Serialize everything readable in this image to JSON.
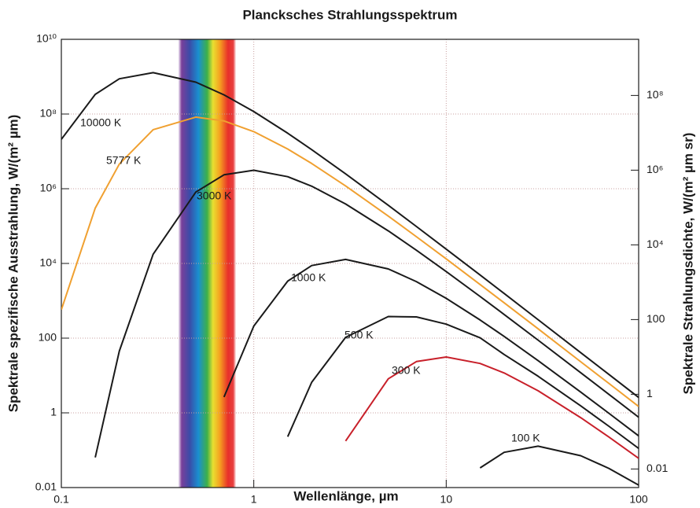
{
  "chart_data": {
    "type": "line",
    "title": "Plancksches Strahlungsspektrum",
    "x_label": "Wellenlänge, µm",
    "y_label": "Spektrale spezifische Ausstrahlung, W/(m² µm)",
    "y2_label": "Spektrale Strahlungsdichte, W/(m² µm sr)",
    "log_x": true,
    "log_y": true,
    "grid": true,
    "visible_range": [
      0.42,
      0.78
    ],
    "x": [
      0.1,
      0.15,
      0.2,
      0.3,
      0.5,
      0.7,
      1,
      1.5,
      2,
      3,
      5,
      7,
      10,
      15,
      20,
      30,
      50,
      70,
      100
    ],
    "xlim": [
      0.1,
      100
    ],
    "xticks": [
      0.1,
      1,
      10,
      100
    ],
    "ylim": [
      0.01,
      10000000000
    ],
    "yticks": [
      0.01,
      1,
      100,
      {
        "value": 10000,
        "label": "10⁴"
      },
      {
        "value": 1000000,
        "label": "10⁶"
      },
      {
        "value": 100000000,
        "label": "10⁸"
      },
      {
        "value": 10000000000,
        "label": "10¹⁰"
      }
    ],
    "y2lim": [
      0.0031831,
      3183098862
    ],
    "y2ticks": [
      0.01,
      1,
      100,
      {
        "value": 10000,
        "label": "10⁴"
      },
      {
        "value": 1000000,
        "label": "10⁶"
      },
      {
        "value": 100000000,
        "label": "10⁸"
      }
    ],
    "series": [
      {
        "name": "10000 K",
        "color": "#1a1a1a",
        "values": [
          21100000,
          336000000,
          878000000,
          1280000000,
          713000000,
          327000000,
          116000000,
          30600000,
          11100000,
          2500000,
          359000,
          97500,
          24200,
          4893,
          1568,
          313,
          41.0,
          10.7,
          2.58
        ]
      },
      {
        "name": "5777 K",
        "color": "#f0a030",
        "values": [
          576,
          304000,
          4570000,
          38200000,
          82800000,
          65300000,
          33800000,
          11570000,
          4730000,
          1190000,
          185400,
          52100,
          13230,
          2728,
          882,
          178,
          23.4,
          6.15,
          1.48
        ]
      },
      {
        "name": "3000 K",
        "color": "#1a1a1a",
        "values": [
          null,
          0.064,
          45,
          17600,
          817000,
          2360000,
          3120000,
          2100000,
          1169000,
          390000,
          74300,
          22600,
          6080,
          1308,
          431,
          88.8,
          11.9,
          3.14,
          0.762
        ]
      },
      {
        "name": "1000 K",
        "color": "#1a1a1a",
        "values": [
          null,
          null,
          null,
          null,
          null,
          2.65,
          211,
          3363,
          8790,
          12800,
          7130,
          3270,
          1164,
          306,
          111,
          25.0,
          3.59,
          0.975,
          0.242
        ]
      },
      {
        "name": "500 K",
        "color": "#1a1a1a",
        "values": [
          null,
          null,
          null,
          null,
          null,
          null,
          null,
          0.23,
          6.6,
          105,
          379,
          371,
          237,
          102,
          36.4,
          9.56,
          1.54,
          0.438,
          0.112
        ]
      },
      {
        "name": "300 K",
        "color": "#c8202a",
        "values": [
          null,
          null,
          null,
          null,
          null,
          null,
          null,
          null,
          null,
          0.176,
          8.17,
          23.6,
          31.2,
          21.0,
          11.7,
          3.9,
          0.743,
          0.226,
          0.0608
        ]
      },
      {
        "name": "100 K",
        "color": "#1a1a1a",
        "values": [
          null,
          null,
          null,
          null,
          null,
          null,
          null,
          null,
          null,
          null,
          null,
          null,
          null,
          0.0336,
          0.0879,
          0.128,
          0.0713,
          0.0327,
          0.0116
        ]
      }
    ]
  }
}
